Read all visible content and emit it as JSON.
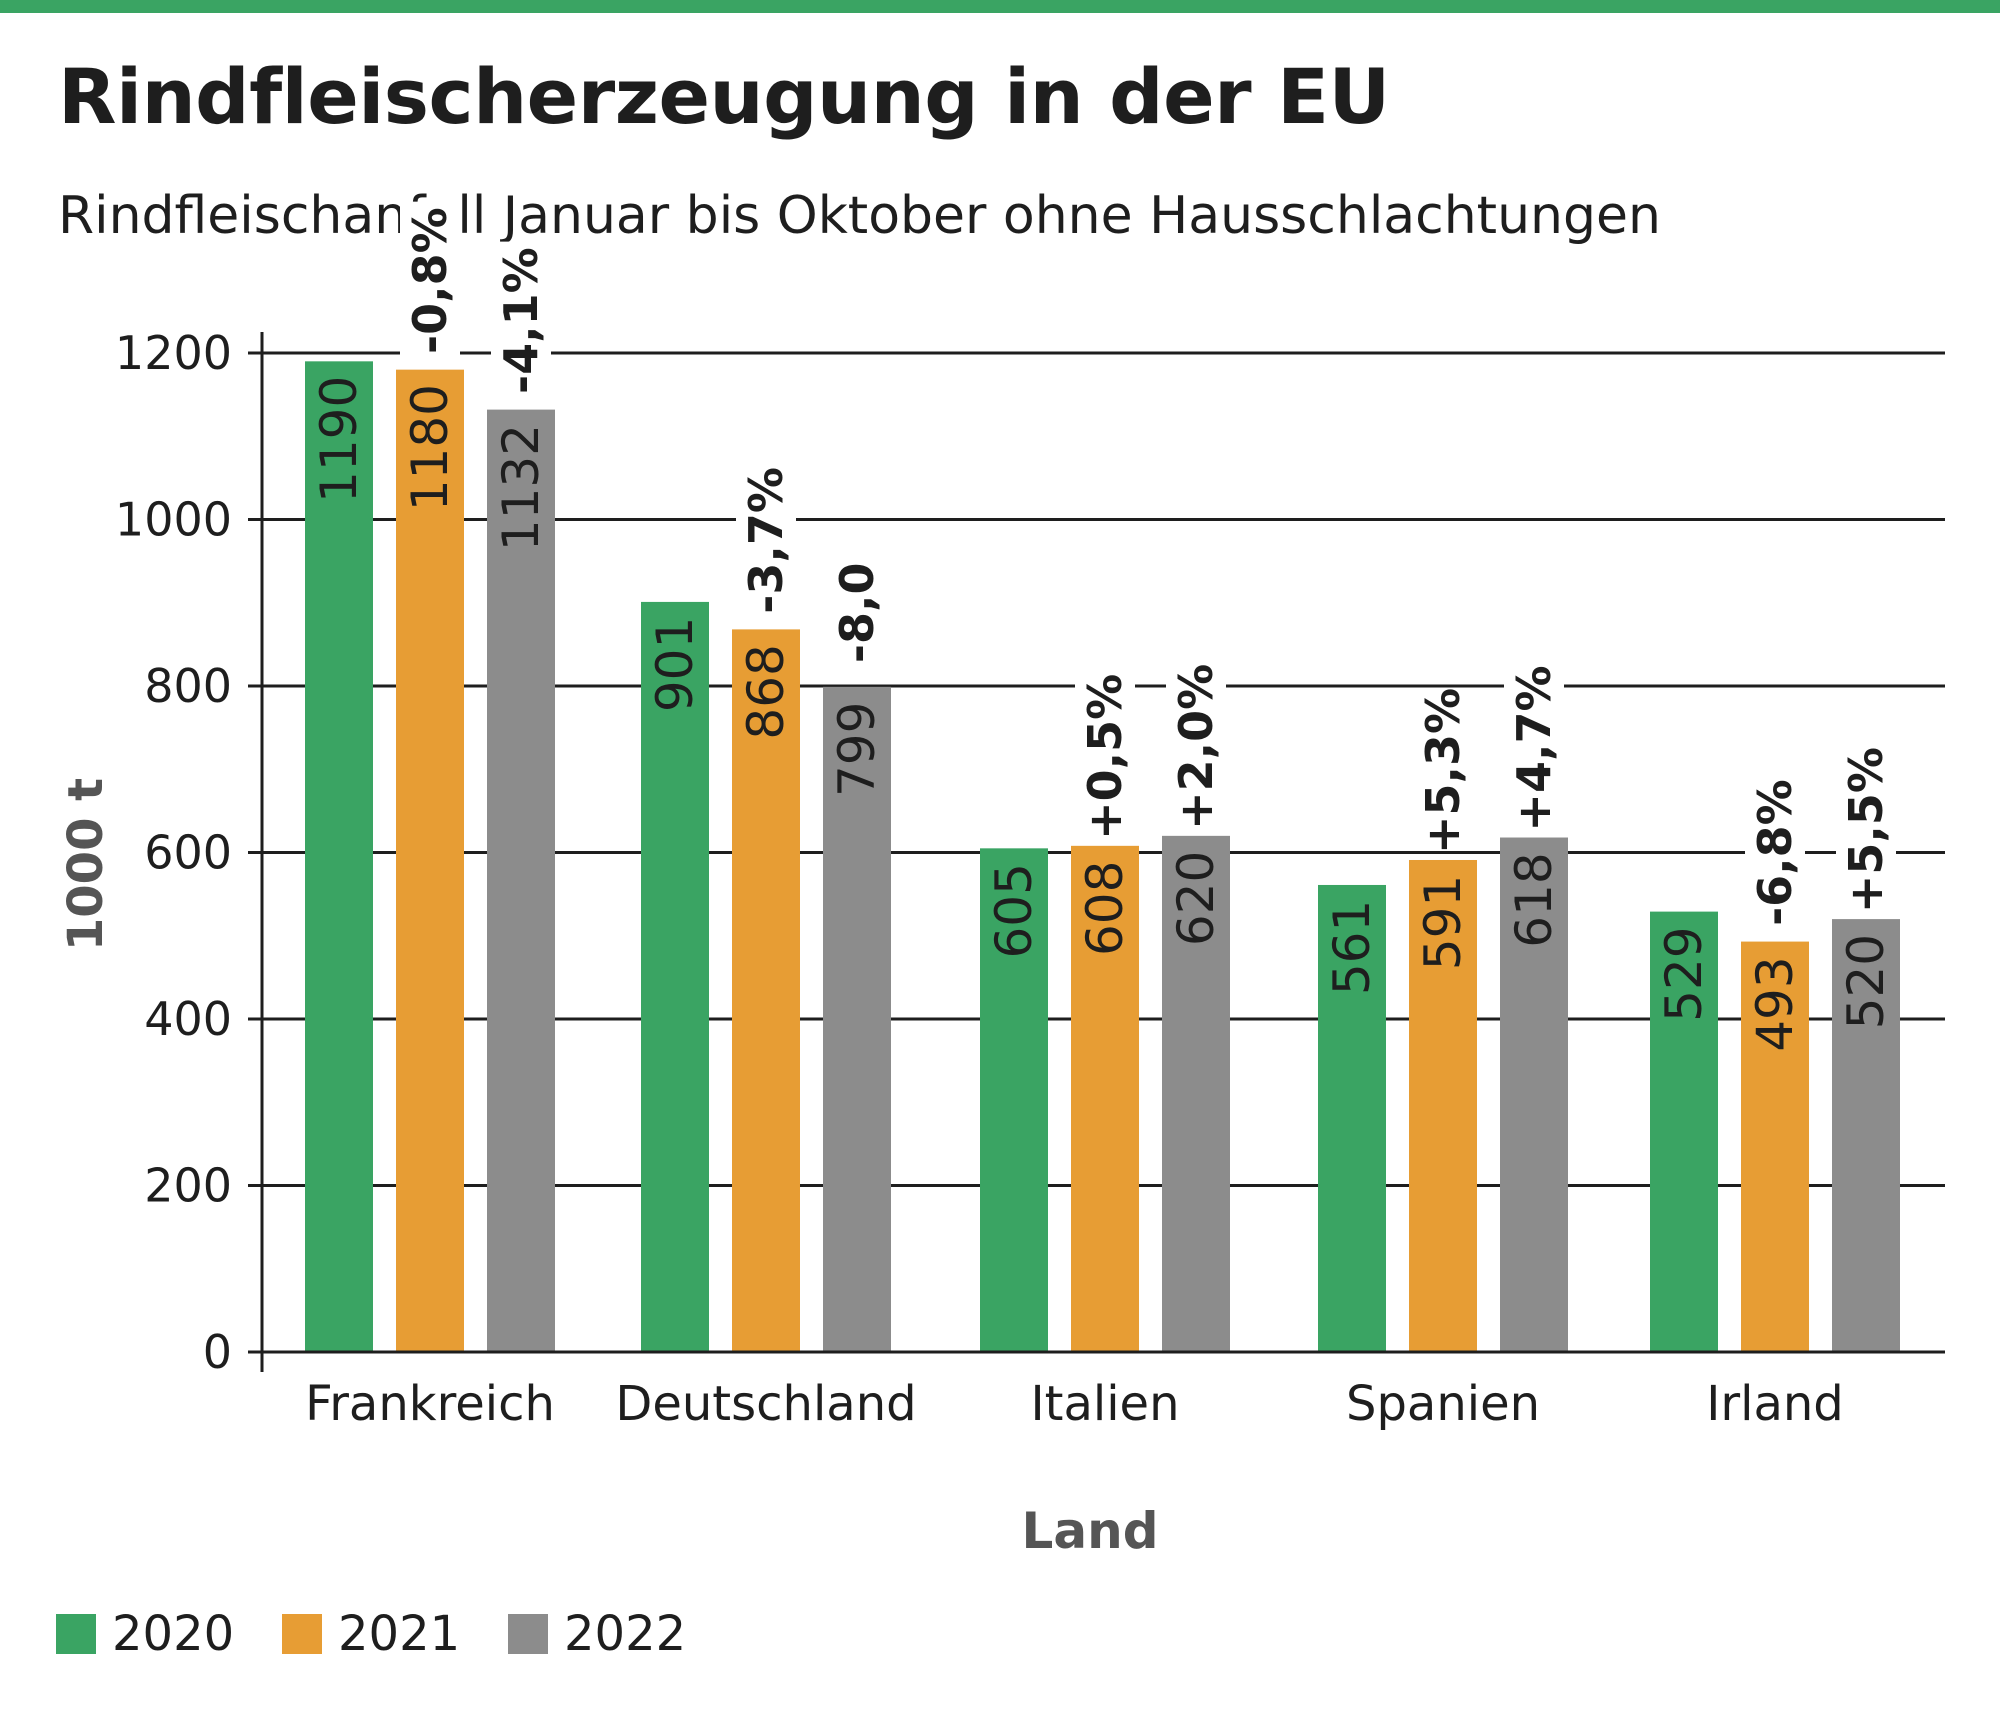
{
  "header": {
    "title": "Rindfleischerzeugung in der EU",
    "subtitle": "Rindfleischanfall Januar bis Oktober ohne Hausschlachtungen"
  },
  "colors": {
    "accent_bar": "#3aa463",
    "series_2020": "#3aa463",
    "series_2021": "#e79d34",
    "series_2022": "#8c8c8c",
    "axis": "#1e1e1e",
    "axis_label": "#555555"
  },
  "legend": {
    "items": [
      {
        "label": "2020",
        "color": "#3aa463"
      },
      {
        "label": "2021",
        "color": "#e79d34"
      },
      {
        "label": "2022",
        "color": "#8c8c8c"
      }
    ]
  },
  "chart_data": {
    "type": "bar",
    "title": "Rindfleischerzeugung in der EU",
    "subtitle": "Rindfleischanfall Januar bis Oktober ohne Hausschlachtungen",
    "xlabel": "Land",
    "ylabel": "1000 t",
    "ylim": [
      0,
      1200
    ],
    "yticks": [
      0,
      200,
      400,
      600,
      800,
      1000,
      1200
    ],
    "grid": true,
    "legend_position": "bottom-left",
    "categories": [
      "Frankreich",
      "Deutschland",
      "Italien",
      "Spanien",
      "Irland"
    ],
    "series": [
      {
        "name": "2020",
        "color": "#3aa463",
        "values": [
          1190,
          901,
          605,
          561,
          529
        ]
      },
      {
        "name": "2021",
        "color": "#e79d34",
        "values": [
          1180,
          868,
          608,
          591,
          493
        ]
      },
      {
        "name": "2022",
        "color": "#8c8c8c",
        "values": [
          1132,
          799,
          620,
          618,
          520
        ]
      }
    ],
    "annotations": [
      {
        "category": "Frankreich",
        "series": "2021",
        "text": "-0,8%"
      },
      {
        "category": "Frankreich",
        "series": "2022",
        "text": "-4,1%"
      },
      {
        "category": "Deutschland",
        "series": "2021",
        "text": "-3,7%"
      },
      {
        "category": "Deutschland",
        "series": "2022",
        "text": "-8,0"
      },
      {
        "category": "Italien",
        "series": "2021",
        "text": "+0,5%"
      },
      {
        "category": "Italien",
        "series": "2022",
        "text": "+2,0%"
      },
      {
        "category": "Spanien",
        "series": "2021",
        "text": "+5,3%"
      },
      {
        "category": "Spanien",
        "series": "2022",
        "text": "+4,7%"
      },
      {
        "category": "Irland",
        "series": "2021",
        "text": "-6,8%"
      },
      {
        "category": "Irland",
        "series": "2022",
        "text": "+5,5%"
      }
    ]
  }
}
